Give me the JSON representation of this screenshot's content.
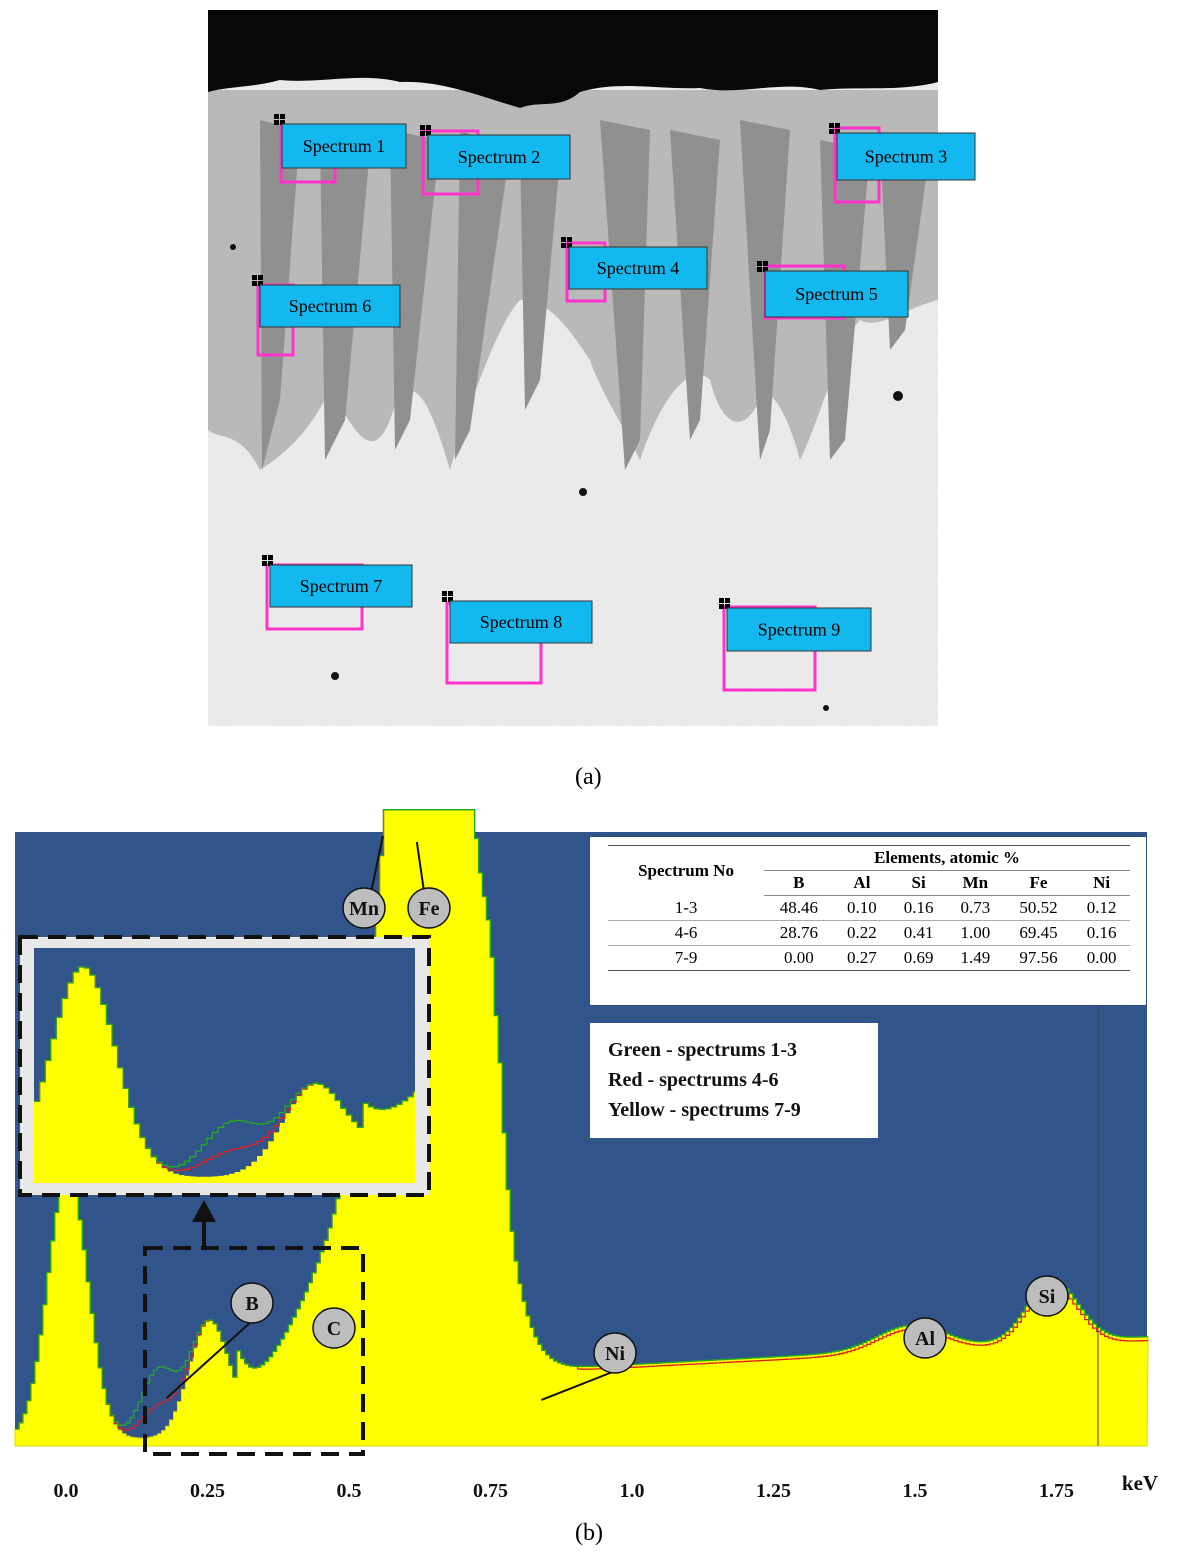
{
  "figure": {
    "caption_a": "(a)",
    "caption_b": "(b)"
  },
  "sem_image": {
    "markers": [
      "Spectrum 1",
      "Spectrum 2",
      "Spectrum 3",
      "Spectrum 4",
      "Spectrum 5",
      "Spectrum 6",
      "Spectrum 7",
      "Spectrum 8",
      "Spectrum 9"
    ],
    "colors": {
      "label_fill": "#12b8ee",
      "roi_box": "#ff33cc"
    }
  },
  "chart_data": {
    "type": "area",
    "xlabel": "keV",
    "xlim": [
      -0.09,
      1.91
    ],
    "ticks": [
      "0.0",
      "0.25",
      "0.5",
      "0.75",
      "1.0",
      "1.25",
      "1.5",
      "1.75"
    ],
    "tick_values": [
      0.0,
      0.25,
      0.5,
      0.75,
      1.0,
      1.25,
      1.5,
      1.75
    ],
    "peak_labels": [
      {
        "name": "B",
        "energy": 0.18
      },
      {
        "name": "C",
        "energy": 0.28
      },
      {
        "name": "Mn",
        "energy": 0.56
      },
      {
        "name": "Fe",
        "energy": 0.62
      },
      {
        "name": "Ni",
        "energy": 0.85
      },
      {
        "name": "Al",
        "energy": 1.49
      },
      {
        "name": "Si",
        "energy": 1.74
      }
    ],
    "series": [
      {
        "name": "Green - spectrums 1-3",
        "color": "#22aa22"
      },
      {
        "name": "Red - spectrums 4-6",
        "color": "#dd2222"
      },
      {
        "name": "Yellow - spectrums 7-9",
        "color": "#ffff00"
      }
    ],
    "colors": {
      "background": "#31548a"
    },
    "table": {
      "col_header": "Spectrum No",
      "group_header": "Elements, atomic %",
      "elements": [
        "B",
        "Al",
        "Si",
        "Mn",
        "Fe",
        "Ni"
      ],
      "rows": [
        {
          "spectrum": "1-3",
          "values": [
            "48.46",
            "0.10",
            "0.16",
            "0.73",
            "50.52",
            "0.12"
          ]
        },
        {
          "spectrum": "4-6",
          "values": [
            "28.76",
            "0.22",
            "0.41",
            "1.00",
            "69.45",
            "0.16"
          ]
        },
        {
          "spectrum": "7-9",
          "values": [
            "0.00",
            "0.27",
            "0.69",
            "1.49",
            "97.56",
            "0.00"
          ]
        }
      ]
    }
  }
}
